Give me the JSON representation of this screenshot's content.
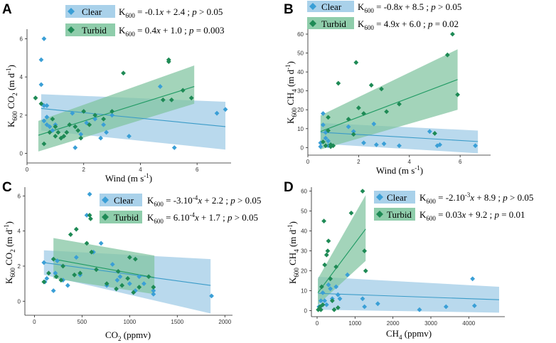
{
  "chart_data": [
    {
      "panel": "A",
      "type": "scatter",
      "xlabel": "Wind (m s-1)",
      "ylabel": "K600 CO2 (m d-1)",
      "xlim": [
        0,
        7.2
      ],
      "ylim": [
        -0.5,
        6.5
      ],
      "xticks": [
        0,
        2,
        4,
        6
      ],
      "yticks": [
        0,
        2,
        4,
        6
      ],
      "legend": "top-left",
      "series": [
        {
          "name": "Clear",
          "equation": "K600 = -0.1x + 2.4 ; p > 0.05",
          "color": "#3a9fd6",
          "fill": "#9ecae6",
          "line_color": "#3a9bc8",
          "fit": {
            "x_range": [
              0.5,
              7.0
            ],
            "y_start": 2.35,
            "y_end": 1.4,
            "band_lo_start": 1.2,
            "band_hi_start": 3.1,
            "band_lo_end": 0.2,
            "band_hi_end": 2.7
          },
          "points": [
            [
              0.5,
              4.9
            ],
            [
              0.5,
              3.6
            ],
            [
              0.6,
              6.0
            ],
            [
              0.6,
              2.5
            ],
            [
              0.6,
              1.7
            ],
            [
              0.7,
              2.5
            ],
            [
              0.7,
              1.9
            ],
            [
              0.7,
              1.5
            ],
            [
              0.8,
              1.4
            ],
            [
              0.9,
              1.2
            ],
            [
              1.0,
              1.5
            ],
            [
              1.6,
              2.1
            ],
            [
              1.7,
              0.3
            ],
            [
              1.9,
              1.0
            ],
            [
              2.1,
              1.6
            ],
            [
              2.4,
              1.8
            ],
            [
              2.6,
              0.8
            ],
            [
              2.7,
              1.5
            ],
            [
              2.8,
              1.1
            ],
            [
              3.0,
              2.0
            ],
            [
              3.6,
              0.9
            ],
            [
              4.7,
              3.5
            ],
            [
              5.2,
              0.3
            ],
            [
              6.7,
              2.1
            ],
            [
              7.0,
              2.3
            ]
          ]
        },
        {
          "name": "Turbid",
          "equation": "K600 = 0.4x + 1.0 ; p = 0.003",
          "color": "#1e8a55",
          "fill": "#7fc4a0",
          "line_color": "#1f9a63",
          "fit": {
            "x_range": [
              0.4,
              5.9
            ],
            "y_start": 0.95,
            "y_end": 3.5,
            "band_lo_start": 0.1,
            "band_hi_start": 1.7,
            "band_lo_end": 2.6,
            "band_hi_end": 4.6
          },
          "points": [
            [
              0.3,
              2.9
            ],
            [
              0.5,
              2.6
            ],
            [
              0.6,
              0.5
            ],
            [
              0.8,
              1.1
            ],
            [
              0.9,
              1.8
            ],
            [
              1.0,
              1.4
            ],
            [
              1.0,
              0.9
            ],
            [
              1.1,
              1.1
            ],
            [
              1.2,
              0.8
            ],
            [
              1.3,
              0.9
            ],
            [
              1.4,
              1.1
            ],
            [
              1.5,
              1.5
            ],
            [
              1.7,
              1.4
            ],
            [
              1.8,
              1.2
            ],
            [
              1.9,
              0.8
            ],
            [
              2.0,
              2.2
            ],
            [
              2.2,
              1.5
            ],
            [
              2.4,
              2.0
            ],
            [
              2.7,
              1.8
            ],
            [
              3.0,
              2.2
            ],
            [
              3.4,
              4.2
            ],
            [
              4.8,
              2.8
            ],
            [
              5.0,
              4.8
            ],
            [
              5.0,
              4.9
            ],
            [
              5.1,
              2.8
            ],
            [
              5.5,
              3.3
            ],
            [
              5.8,
              2.9
            ]
          ]
        }
      ]
    },
    {
      "panel": "B",
      "type": "scatter",
      "xlabel": "Wind (m s-1)",
      "ylabel": "K600 CH4 (m d-1)",
      "xlim": [
        0,
        7.2
      ],
      "ylim": [
        -4,
        63
      ],
      "xticks": [
        0,
        2,
        4,
        6
      ],
      "yticks": [
        0,
        10,
        20,
        30,
        40,
        50,
        60
      ],
      "legend": "top-left",
      "series": [
        {
          "name": "Clear",
          "equation": "K600 = -0.8x + 8.5 ; p > 0.05",
          "color": "#3a9fd6",
          "fill": "#9ecae6",
          "line_color": "#3a9bc8",
          "fit": {
            "x_range": [
              0.5,
              6.7
            ],
            "y_start": 8.1,
            "y_end": 3.2,
            "band_lo_start": 2.0,
            "band_hi_start": 13.0,
            "band_lo_end": -3.0,
            "band_hi_end": 9.0
          },
          "points": [
            [
              0.5,
              0.5
            ],
            [
              0.5,
              2.5
            ],
            [
              0.6,
              18.0
            ],
            [
              0.6,
              12.0
            ],
            [
              0.7,
              8.0
            ],
            [
              0.7,
              5.0
            ],
            [
              0.8,
              3.5
            ],
            [
              0.8,
              1.0
            ],
            [
              0.9,
              1.5
            ],
            [
              1.6,
              11.0
            ],
            [
              1.8,
              8.5
            ],
            [
              2.2,
              2.5
            ],
            [
              2.6,
              12.5
            ],
            [
              2.7,
              1.5
            ],
            [
              3.0,
              2.0
            ],
            [
              3.6,
              1.0
            ],
            [
              4.8,
              8.5
            ],
            [
              5.1,
              1.0
            ],
            [
              5.2,
              1.5
            ],
            [
              6.6,
              1.0
            ]
          ]
        },
        {
          "name": "Turbid",
          "equation": "K600 = 4.9x + 6.0 ; p = 0.02",
          "color": "#1e8a55",
          "fill": "#7fc4a0",
          "line_color": "#1f9a63",
          "fit": {
            "x_range": [
              0.5,
              5.9
            ],
            "y_start": 8.5,
            "y_end": 36.0,
            "band_lo_start": -1.0,
            "band_hi_start": 17.0,
            "band_lo_end": 20.0,
            "band_hi_end": 52.0
          },
          "points": [
            [
              0.6,
              3.0
            ],
            [
              0.7,
              1.0
            ],
            [
              0.8,
              9.0
            ],
            [
              0.8,
              16.0
            ],
            [
              0.9,
              1.5
            ],
            [
              0.9,
              0.5
            ],
            [
              1.0,
              1.0
            ],
            [
              1.2,
              34.0
            ],
            [
              1.6,
              15.0
            ],
            [
              1.8,
              7.0
            ],
            [
              1.9,
              45.0
            ],
            [
              2.0,
              21.0
            ],
            [
              2.2,
              18.0
            ],
            [
              2.5,
              33.0
            ],
            [
              2.9,
              31.0
            ],
            [
              3.1,
              19.0
            ],
            [
              3.6,
              23.0
            ],
            [
              5.0,
              7.5
            ],
            [
              5.5,
              49.0
            ],
            [
              5.7,
              60.0
            ],
            [
              5.9,
              28.0
            ]
          ]
        }
      ]
    },
    {
      "panel": "C",
      "type": "scatter",
      "xlabel": "CO2 (ppmv)",
      "ylabel": "K600 CO2 (m d-1)",
      "xlim": [
        -100,
        2080
      ],
      "ylim": [
        -0.8,
        6.5
      ],
      "xticks": [
        0,
        500,
        1000,
        1500,
        2000
      ],
      "yticks": [
        0,
        2,
        4,
        6
      ],
      "legend": "top-right",
      "series": [
        {
          "name": "Clear",
          "equation": "K600 = -3.10-4x + 2.2 ; p > 0.05",
          "color": "#3a9fd6",
          "fill": "#9ecae6",
          "line_color": "#3a9bc8",
          "fit": {
            "x_range": [
              100,
              1850
            ],
            "y_start": 2.2,
            "y_end": 0.9,
            "band_lo_start": 1.5,
            "band_hi_start": 2.9,
            "band_lo_end": -0.7,
            "band_hi_end": 2.4
          },
          "points": [
            [
              100,
              2.2
            ],
            [
              110,
              1.1
            ],
            [
              130,
              1.3
            ],
            [
              200,
              0.6
            ],
            [
              220,
              1.6
            ],
            [
              240,
              2.3
            ],
            [
              300,
              1.2
            ],
            [
              350,
              0.9
            ],
            [
              440,
              2.5
            ],
            [
              480,
              1.5
            ],
            [
              550,
              4.9
            ],
            [
              580,
              6.1
            ],
            [
              620,
              2.8
            ],
            [
              700,
              3.3
            ],
            [
              760,
              0.9
            ],
            [
              820,
              2.1
            ],
            [
              870,
              1.2
            ],
            [
              900,
              1.4
            ],
            [
              1000,
              1.0
            ],
            [
              1060,
              0.6
            ],
            [
              1100,
              1.4
            ],
            [
              1150,
              1.0
            ],
            [
              1250,
              0.6
            ],
            [
              1250,
              0.4
            ],
            [
              1860,
              0.3
            ]
          ]
        },
        {
          "name": "Turbid",
          "equation": "K600 = 6.10-4x + 1.7 ; p > 0.05",
          "color": "#1e8a55",
          "fill": "#7fc4a0",
          "line_color": "#1f9a63",
          "fit": {
            "x_range": [
              200,
              1260
            ],
            "y_start": 2.4,
            "y_end": 1.35,
            "band_lo_start": 1.3,
            "band_hi_start": 3.6,
            "band_lo_end": 0.4,
            "band_hi_end": 2.6
          },
          "points": [
            [
              100,
              1.1
            ],
            [
              150,
              1.6
            ],
            [
              200,
              2.4
            ],
            [
              230,
              1.4
            ],
            [
              280,
              1.2
            ],
            [
              300,
              2.0
            ],
            [
              380,
              3.8
            ],
            [
              420,
              1.5
            ],
            [
              440,
              4.1
            ],
            [
              480,
              1.6
            ],
            [
              550,
              3.3
            ],
            [
              580,
              4.9
            ],
            [
              590,
              4.7
            ],
            [
              600,
              2.8
            ],
            [
              650,
              1.8
            ],
            [
              760,
              1.0
            ],
            [
              860,
              0.7
            ],
            [
              880,
              1.7
            ],
            [
              920,
              0.9
            ],
            [
              980,
              1.3
            ],
            [
              1000,
              2.5
            ],
            [
              1040,
              0.5
            ],
            [
              1060,
              2.4
            ],
            [
              1100,
              0.8
            ],
            [
              1200,
              1.4
            ],
            [
              1250,
              0.8
            ]
          ]
        }
      ]
    },
    {
      "panel": "D",
      "type": "scatter",
      "xlabel": "CH4 (ppmv)",
      "ylabel": "K600 CH4 (m d-1)",
      "xlim": [
        -150,
        4950
      ],
      "ylim": [
        -3,
        62
      ],
      "xticks": [
        0,
        1000,
        2000,
        3000,
        4000
      ],
      "yticks": [
        0,
        10,
        20,
        30,
        40,
        50,
        60
      ],
      "legend": "top-right",
      "series": [
        {
          "name": "Clear",
          "equation": "K600 = -2.10-3x + 8.9 ; p > 0.05",
          "color": "#3a9fd6",
          "fill": "#9ecae6",
          "line_color": "#3a9bc8",
          "fit": {
            "x_range": [
              30,
              4800
            ],
            "y_start": 8.7,
            "y_end": 5.5,
            "band_lo_start": 0.5,
            "band_hi_start": 17.0,
            "band_lo_end": -1.0,
            "band_hi_end": 12.0
          },
          "points": [
            [
              50,
              2.0
            ],
            [
              100,
              5.0
            ],
            [
              150,
              9.0
            ],
            [
              200,
              5.0
            ],
            [
              250,
              3.0
            ],
            [
              300,
              13.0
            ],
            [
              350,
              11.0
            ],
            [
              400,
              6.0
            ],
            [
              500,
              12.0
            ],
            [
              550,
              8.0
            ],
            [
              600,
              6.0
            ],
            [
              800,
              18.0
            ],
            [
              1200,
              6.0
            ],
            [
              1250,
              2.0
            ],
            [
              1600,
              3.5
            ],
            [
              2700,
              0.5
            ],
            [
              3400,
              2.0
            ],
            [
              4100,
              16.0
            ],
            [
              4150,
              2.5
            ]
          ]
        },
        {
          "name": "Turbid",
          "equation": "K600 = 0.03x + 9.2 ; p = 0.01",
          "color": "#1e8a55",
          "fill": "#7fc4a0",
          "line_color": "#1f9a63",
          "fit": {
            "x_range": [
              20,
              1280
            ],
            "y_start": 9.0,
            "y_end": 41.0,
            "band_lo_start": 3.0,
            "band_hi_start": 16.0,
            "band_lo_end": 25.0,
            "band_hi_end": 58.0
          },
          "points": [
            [
              30,
              0.5
            ],
            [
              60,
              1.0
            ],
            [
              80,
              2.0
            ],
            [
              100,
              0.5
            ],
            [
              120,
              12.0
            ],
            [
              150,
              3.0
            ],
            [
              180,
              45.0
            ],
            [
              200,
              23.0
            ],
            [
              250,
              28.0
            ],
            [
              280,
              30.0
            ],
            [
              300,
              35.0
            ],
            [
              350,
              16.0
            ],
            [
              400,
              5.0
            ],
            [
              450,
              0.5
            ],
            [
              500,
              22.0
            ],
            [
              550,
              1.5
            ],
            [
              900,
              49.0
            ],
            [
              1200,
              60.0
            ],
            [
              1250,
              30.0
            ],
            [
              1280,
              20.0
            ]
          ]
        }
      ]
    }
  ]
}
